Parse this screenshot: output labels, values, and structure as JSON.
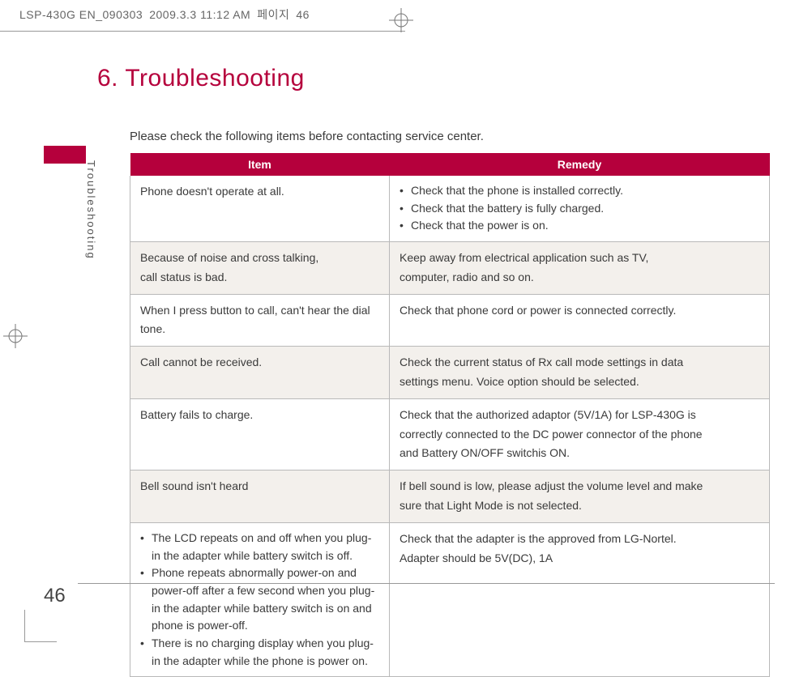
{
  "crop_header": {
    "filename": "LSP-430G EN_090303",
    "timestamp": "2009.3.3 11:12 AM",
    "page_word": "페이지",
    "page_num": "46"
  },
  "title": "6. Troubleshooting",
  "side_label": "Troubleshooting",
  "intro": "Please check the following items before contacting service center.",
  "table": {
    "headers": {
      "item": "Item",
      "remedy": "Remedy"
    },
    "rows": [
      {
        "shade": false,
        "item_text": "Phone doesn't operate at all.",
        "remedy_list": [
          "Check that the phone is installed correctly.",
          "Check that the battery is fully charged.",
          "Check that the power is on."
        ]
      },
      {
        "shade": true,
        "item_text": "Because of noise and cross talking,\ncall status is bad.",
        "remedy_text": "Keep away from electrical application such as TV,\ncomputer, radio and so on."
      },
      {
        "shade": false,
        "item_text": "When I press button to call, can't hear the dial tone.",
        "remedy_text": "Check that phone cord or power is connected correctly."
      },
      {
        "shade": true,
        "item_text": "Call cannot be received.",
        "remedy_text": "Check the current status of Rx call mode settings in data\nsettings menu. Voice option should be selected."
      },
      {
        "shade": false,
        "item_text": "Battery fails to charge.",
        "remedy_text": "Check that the authorized adaptor (5V/1A) for LSP-430G is\ncorrectly connected to the DC power connector of the phone\nand Battery ON/OFF switchis ON."
      },
      {
        "shade": true,
        "item_text": "Bell sound isn't heard",
        "remedy_text": "If bell sound is low, please adjust the volume level and make\nsure that Light Mode is not selected."
      },
      {
        "shade": false,
        "item_list": [
          "The LCD repeats on and off when you plug-in the adapter while battery switch is off.",
          "Phone repeats abnormally power-on and power-off after a few second when you plug-in the adapter while battery switch is on and phone is power-off.",
          "There is no charging display when you plug-in the adapter while the phone is power on."
        ],
        "remedy_text": "Check that the adapter is the approved from LG-Nortel.\nAdapter should be 5V(DC), 1A"
      }
    ]
  },
  "page_number": "46",
  "colors": {
    "brand": "#b5003c",
    "text": "#3a3a3a",
    "rule": "#999999",
    "shade_bg": "#f3f0ec"
  }
}
